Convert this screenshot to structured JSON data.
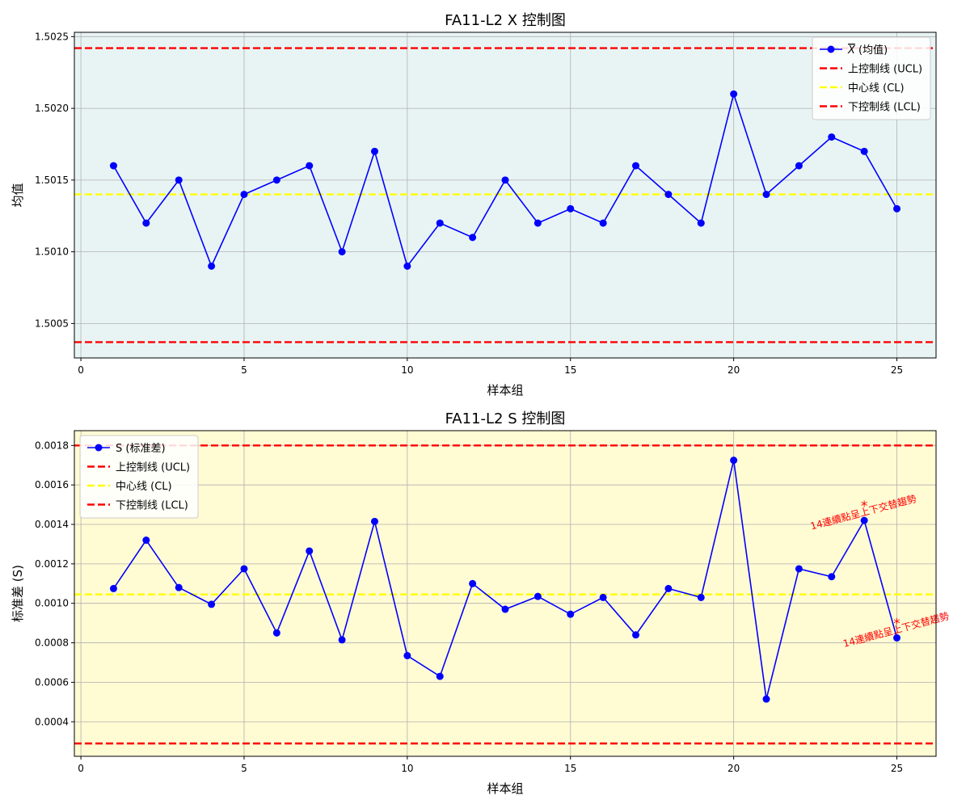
{
  "chart_data": [
    {
      "type": "line",
      "title": "FA11-L2 X 控制图",
      "xlabel": "样本组",
      "ylabel": "均值",
      "xlim": [
        -0.2,
        26.2
      ],
      "ylim": [
        1.50026,
        1.50253
      ],
      "xticks": [
        0,
        5,
        10,
        15,
        20,
        25
      ],
      "xtick_labels": [
        "0",
        "5",
        "10",
        "15",
        "20",
        "25"
      ],
      "yticks": [
        1.5005,
        1.501,
        1.5015,
        1.502,
        1.5025
      ],
      "ytick_labels": [
        "1.5005",
        "1.5010",
        "1.5015",
        "1.5020",
        "1.5025"
      ],
      "grid": true,
      "background": "#e8f4f4",
      "legend_position": "top-right",
      "x": [
        1,
        2,
        3,
        4,
        5,
        6,
        7,
        8,
        9,
        10,
        11,
        12,
        13,
        14,
        15,
        16,
        17,
        18,
        19,
        20,
        21,
        22,
        23,
        24,
        25
      ],
      "series": [
        {
          "name": "X (均值)",
          "name_prefix": "X",
          "name_suffix": " (均值)",
          "color": "#0000ff",
          "values": [
            1.5016,
            1.5012,
            1.5015,
            1.5009,
            1.5014,
            1.5015,
            1.5016,
            1.501,
            1.5017,
            1.5009,
            1.5012,
            1.5011,
            1.5015,
            1.5012,
            1.5013,
            1.5012,
            1.5016,
            1.5014,
            1.5012,
            1.5021,
            1.5014,
            1.5016,
            1.5018,
            1.5017,
            1.5013
          ]
        }
      ],
      "control_lines": [
        {
          "name": "上控制线 (UCL)",
          "value": 1.50242,
          "color": "#ff0000"
        },
        {
          "name": "中心线 (CL)",
          "value": 1.5014,
          "color": "#ffff00"
        },
        {
          "name": "下控制线 (LCL)",
          "value": 1.50037,
          "color": "#ff0000"
        }
      ],
      "annotations": []
    },
    {
      "type": "line",
      "title": "FA11-L2 S 控制图",
      "xlabel": "样本组",
      "ylabel": "标准差 (S)",
      "xlim": [
        -0.2,
        26.2
      ],
      "ylim": [
        0.000225,
        0.001875
      ],
      "xticks": [
        0,
        5,
        10,
        15,
        20,
        25
      ],
      "xtick_labels": [
        "0",
        "5",
        "10",
        "15",
        "20",
        "25"
      ],
      "yticks": [
        0.0004,
        0.0006,
        0.0008,
        0.001,
        0.0012,
        0.0014,
        0.0016,
        0.0018
      ],
      "ytick_labels": [
        "0.0004",
        "0.0006",
        "0.0008",
        "0.0010",
        "0.0012",
        "0.0014",
        "0.0016",
        "0.0018"
      ],
      "grid": true,
      "background": "#fffbd3",
      "legend_position": "top-left",
      "x": [
        1,
        2,
        3,
        4,
        5,
        6,
        7,
        8,
        9,
        10,
        11,
        12,
        13,
        14,
        15,
        16,
        17,
        18,
        19,
        20,
        21,
        22,
        23,
        24,
        25
      ],
      "series": [
        {
          "name": "S (标准差)",
          "color": "#0000ff",
          "values": [
            0.001075,
            0.00132,
            0.00108,
            0.000995,
            0.001175,
            0.00085,
            0.001265,
            0.000815,
            0.001415,
            0.000735,
            0.00063,
            0.0011,
            0.00097,
            0.001035,
            0.000945,
            0.00103,
            0.00084,
            0.001075,
            0.00103,
            0.001725,
            0.000515,
            0.001175,
            0.001135,
            0.00142,
            0.000825
          ]
        }
      ],
      "control_lines": [
        {
          "name": "上控制线 (UCL)",
          "value": 0.0018,
          "color": "#ff0000"
        },
        {
          "name": "中心线 (CL)",
          "value": 0.001045,
          "color": "#ffff00"
        },
        {
          "name": "下控制线 (LCL)",
          "value": 0.00029,
          "color": "#ff0000"
        }
      ],
      "annotations": [
        {
          "x": 24,
          "y": 0.00142,
          "marker": "*",
          "text": "14連續點呈上下交替趨勢",
          "color": "#ff0000"
        },
        {
          "x": 25,
          "y": 0.000825,
          "marker": "*",
          "text": "14連續點呈上下交替趨勢",
          "color": "#ff0000"
        }
      ]
    }
  ]
}
